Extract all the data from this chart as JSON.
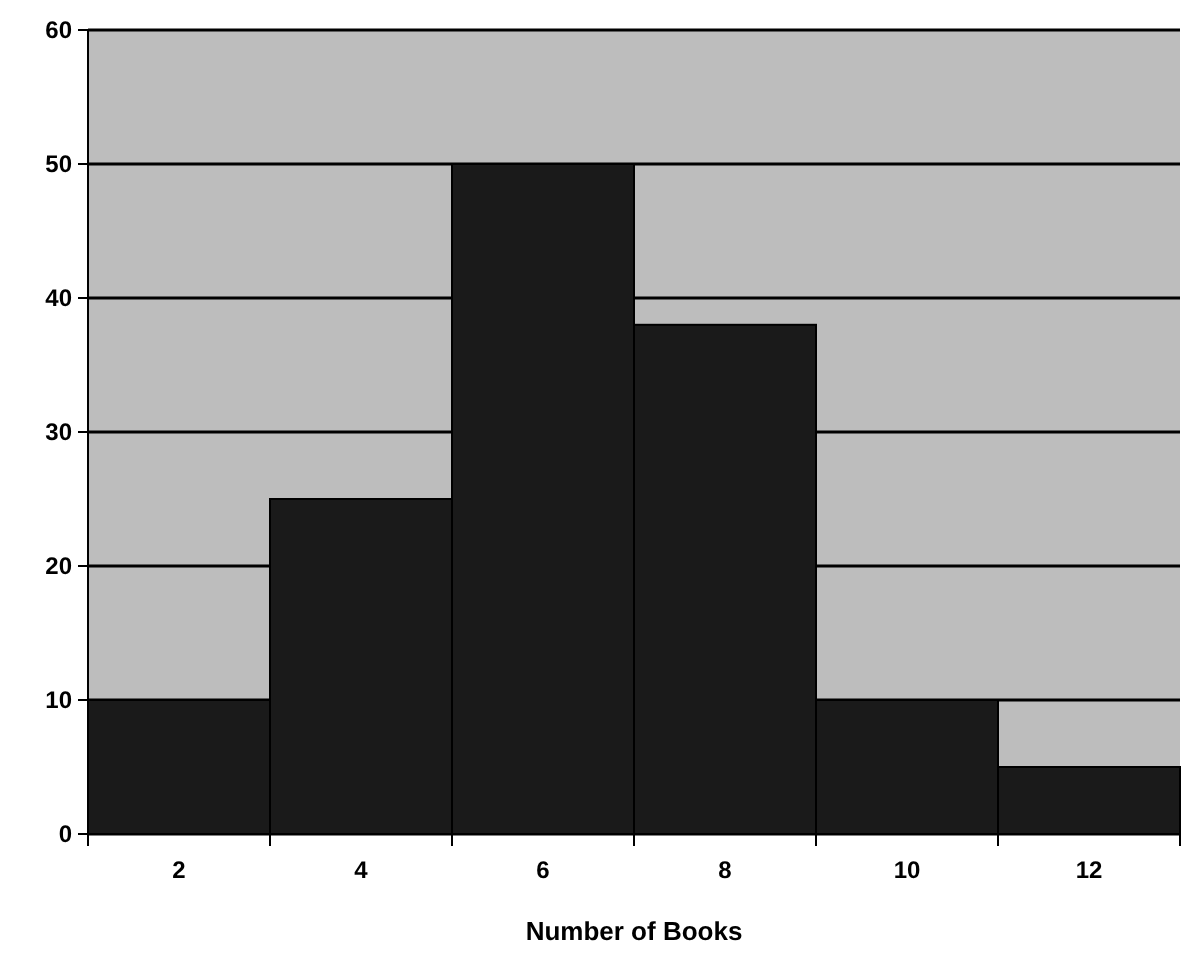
{
  "chart_data": {
    "type": "bar",
    "xlabel": "Number of Books",
    "categories": [
      "2",
      "4",
      "6",
      "8",
      "10",
      "12"
    ],
    "values": [
      10,
      25,
      50,
      38,
      10,
      5
    ],
    "color": "#1a1a1a",
    "ylim": [
      0,
      60
    ],
    "yticks": [
      0,
      10,
      20,
      30,
      40,
      50,
      60
    ],
    "grid": "y"
  }
}
